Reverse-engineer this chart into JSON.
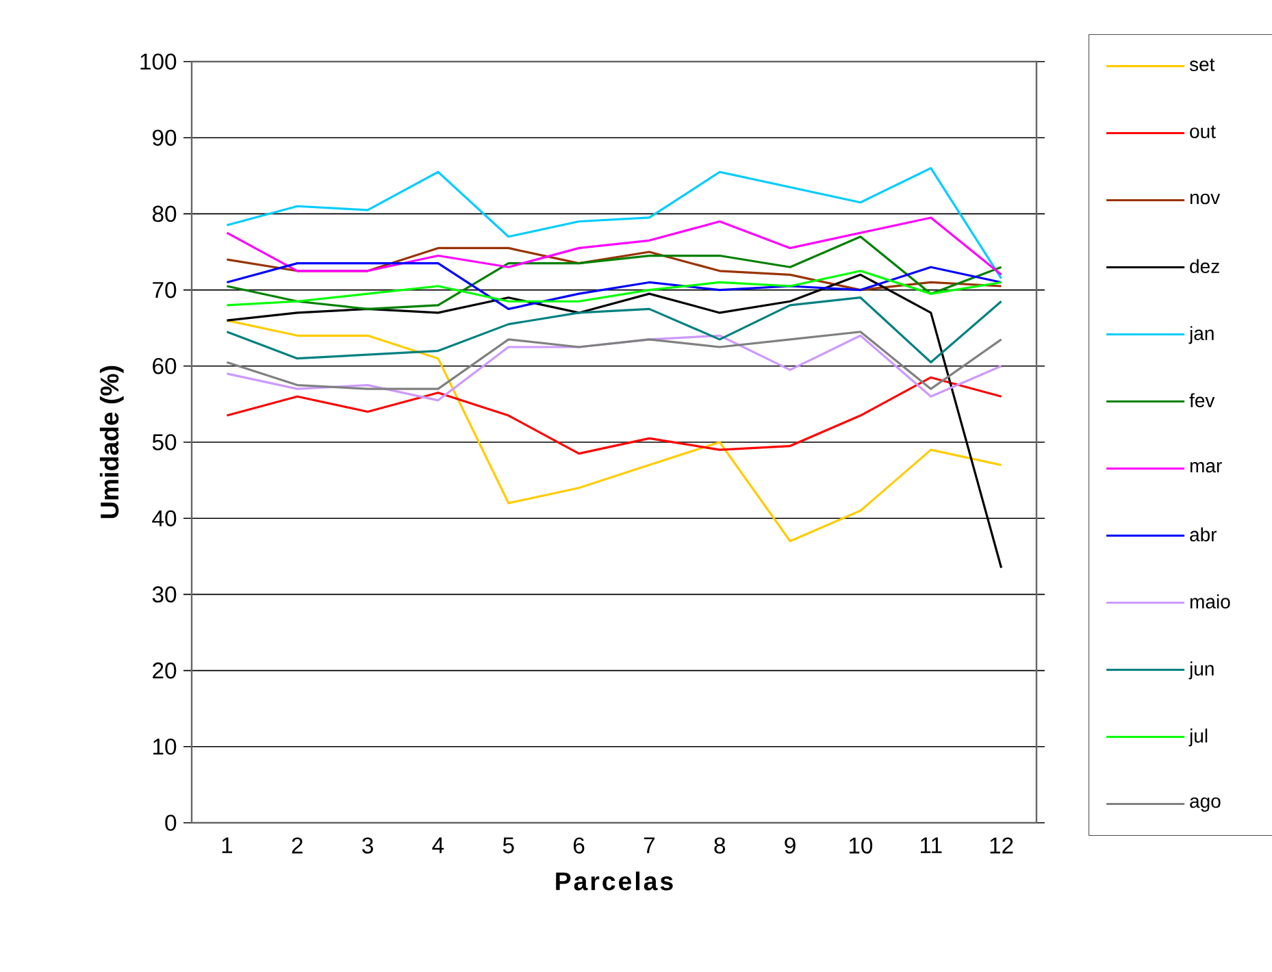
{
  "chart_data": {
    "type": "line",
    "xlabel": "Parcelas",
    "ylabel": "Umidade (%)",
    "categories": [
      "1",
      "2",
      "3",
      "4",
      "5",
      "6",
      "7",
      "8",
      "9",
      "10",
      "11",
      "12"
    ],
    "ylim": [
      0,
      100
    ],
    "yticks": [
      0,
      10,
      20,
      30,
      40,
      50,
      60,
      70,
      80,
      90,
      100
    ],
    "grid": "y",
    "legend": "right",
    "marker": "none",
    "line_style": "solid",
    "series": [
      {
        "name": "set",
        "color": "#ffcc00",
        "values": [
          66,
          64,
          64,
          61,
          42,
          44,
          47,
          50,
          37,
          41,
          49,
          47
        ]
      },
      {
        "name": "out",
        "color": "#ff0000",
        "values": [
          53.5,
          56,
          54,
          56.5,
          53.5,
          48.5,
          50.5,
          49,
          49.5,
          53.5,
          58.5,
          56
        ]
      },
      {
        "name": "nov",
        "color": "#993300",
        "values": [
          74,
          72.5,
          72.5,
          75.5,
          75.5,
          73.5,
          75,
          72.5,
          72,
          70,
          71,
          70.5
        ]
      },
      {
        "name": "dez",
        "color": "#000000",
        "values": [
          66,
          67,
          67.5,
          67,
          69,
          67,
          69.5,
          67,
          68.5,
          72,
          67,
          33.5
        ]
      },
      {
        "name": "jan",
        "color": "#00ccff",
        "values": [
          78.5,
          81,
          80.5,
          85.5,
          77,
          79,
          79.5,
          85.5,
          83.5,
          81.5,
          86,
          71.5
        ]
      },
      {
        "name": "fev",
        "color": "#008000",
        "values": [
          70.5,
          68.5,
          67.5,
          68,
          73.5,
          73.5,
          74.5,
          74.5,
          73,
          77,
          69.5,
          73
        ]
      },
      {
        "name": "mar",
        "color": "#ff00ff",
        "values": [
          77.5,
          72.5,
          72.5,
          74.5,
          73,
          75.5,
          76.5,
          79,
          75.5,
          77.5,
          79.5,
          72
        ]
      },
      {
        "name": "abr",
        "color": "#0000ff",
        "values": [
          71,
          73.5,
          73.5,
          73.5,
          67.5,
          69.5,
          71,
          70,
          70.5,
          70,
          73,
          71
        ]
      },
      {
        "name": "maio",
        "color": "#cc99ff",
        "values": [
          59,
          57,
          57.5,
          55.5,
          62.5,
          62.5,
          63.5,
          64,
          59.5,
          64,
          56,
          60
        ]
      },
      {
        "name": "jun",
        "color": "#008080",
        "values": [
          64.5,
          61,
          61.5,
          62,
          65.5,
          67,
          67.5,
          63.5,
          68,
          69,
          60.5,
          68.5
        ]
      },
      {
        "name": "jul",
        "color": "#00ff00",
        "values": [
          68,
          68.5,
          69.5,
          70.5,
          68.5,
          68.5,
          70,
          71,
          70.5,
          72.5,
          69.5,
          71
        ]
      },
      {
        "name": "ago",
        "color": "#808080",
        "values": [
          60.5,
          57.5,
          57,
          57,
          63.5,
          62.5,
          63.5,
          62.5,
          63.5,
          64.5,
          57,
          63.5
        ]
      }
    ]
  }
}
